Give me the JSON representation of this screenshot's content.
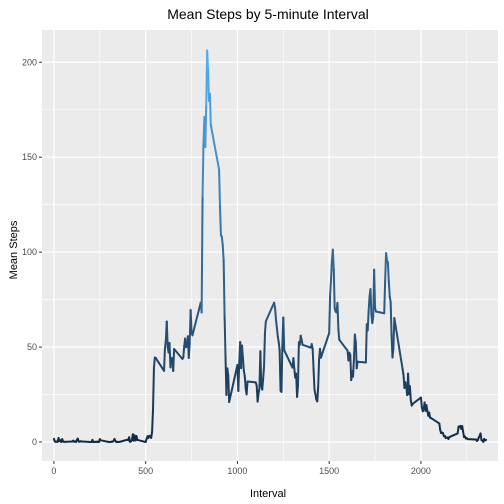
{
  "chart_data": {
    "type": "line",
    "title": "Mean Steps by 5-minute Interval",
    "xlabel": "Interval",
    "ylabel": "Mean Steps",
    "xlim": [
      -65,
      2420
    ],
    "ylim": [
      -10,
      217
    ],
    "xticks": [
      0,
      500,
      1000,
      1500,
      2000
    ],
    "yticks": [
      0,
      50,
      100,
      150,
      200
    ],
    "xminor": [
      250,
      750,
      1250,
      1750,
      2250
    ],
    "yminor": [
      25,
      75,
      125,
      175
    ],
    "grid": true,
    "background": "#EBEBEB",
    "gridColor": "#FFFFFF",
    "colorLow": "#132B43",
    "colorHigh": "#56B1F7",
    "legend": "none",
    "x": [
      0,
      5,
      10,
      15,
      20,
      25,
      30,
      35,
      40,
      45,
      50,
      55,
      100,
      105,
      110,
      115,
      120,
      125,
      130,
      135,
      140,
      145,
      150,
      155,
      200,
      205,
      210,
      215,
      220,
      225,
      230,
      235,
      240,
      245,
      250,
      255,
      300,
      305,
      310,
      315,
      320,
      325,
      330,
      335,
      340,
      345,
      350,
      355,
      400,
      405,
      410,
      415,
      420,
      425,
      430,
      435,
      440,
      445,
      450,
      455,
      500,
      505,
      510,
      515,
      520,
      525,
      530,
      535,
      540,
      545,
      550,
      555,
      600,
      605,
      610,
      615,
      620,
      625,
      630,
      635,
      640,
      645,
      650,
      655,
      700,
      705,
      710,
      715,
      720,
      725,
      730,
      735,
      740,
      745,
      750,
      755,
      800,
      805,
      810,
      815,
      820,
      825,
      830,
      835,
      840,
      845,
      850,
      855,
      900,
      905,
      910,
      915,
      920,
      925,
      930,
      935,
      940,
      945,
      950,
      955,
      1000,
      1005,
      1010,
      1015,
      1020,
      1025,
      1030,
      1035,
      1040,
      1045,
      1050,
      1055,
      1100,
      1105,
      1110,
      1115,
      1120,
      1125,
      1130,
      1135,
      1140,
      1145,
      1150,
      1155,
      1200,
      1205,
      1210,
      1215,
      1220,
      1225,
      1230,
      1235,
      1240,
      1245,
      1250,
      1255,
      1300,
      1305,
      1310,
      1315,
      1320,
      1325,
      1330,
      1335,
      1340,
      1345,
      1350,
      1355,
      1400,
      1405,
      1410,
      1415,
      1420,
      1425,
      1430,
      1435,
      1440,
      1445,
      1450,
      1455,
      1500,
      1505,
      1510,
      1515,
      1520,
      1525,
      1530,
      1535,
      1540,
      1545,
      1550,
      1555,
      1600,
      1605,
      1610,
      1615,
      1620,
      1625,
      1630,
      1635,
      1640,
      1645,
      1650,
      1655,
      1700,
      1705,
      1710,
      1715,
      1720,
      1725,
      1730,
      1735,
      1740,
      1745,
      1750,
      1755,
      1800,
      1805,
      1810,
      1815,
      1820,
      1825,
      1830,
      1835,
      1840,
      1845,
      1850,
      1855,
      1900,
      1905,
      1910,
      1915,
      1920,
      1925,
      1930,
      1935,
      1940,
      1945,
      1950,
      1955,
      2000,
      2005,
      2010,
      2015,
      2020,
      2025,
      2030,
      2035,
      2040,
      2045,
      2050,
      2055,
      2100,
      2105,
      2110,
      2115,
      2120,
      2125,
      2130,
      2135,
      2140,
      2145,
      2150,
      2155,
      2200,
      2205,
      2210,
      2215,
      2220,
      2225,
      2230,
      2235,
      2240,
      2245,
      2250,
      2255,
      2300,
      2305,
      2310,
      2315,
      2320,
      2325,
      2330,
      2335,
      2340,
      2345,
      2350,
      2355
    ],
    "y": [
      1.7,
      0.3,
      0.1,
      0.2,
      0.1,
      2.1,
      0.5,
      0.9,
      0,
      1.5,
      0.3,
      0.1,
      0.3,
      0.7,
      0.2,
      0.3,
      0,
      1.1,
      1.8,
      0.2,
      0.2,
      0.4,
      0.3,
      0.3,
      0,
      0,
      1.1,
      0,
      0,
      0.1,
      0,
      0.2,
      0,
      0,
      1.5,
      0.9,
      0,
      0,
      0,
      0.2,
      0.2,
      0.6,
      1.6,
      0.6,
      0,
      0.1,
      0,
      0,
      1.2,
      0.9,
      2.5,
      0.1,
      0.4,
      0.9,
      4.1,
      0.7,
      3.5,
      0.8,
      3.1,
      1.1,
      0,
      1.6,
      3,
      2.2,
      3.3,
      2.9,
      2.2,
      5.4,
      17.4,
      39,
      44.5,
      44.2,
      37.5,
      49.3,
      53.8,
      63.5,
      50,
      47.1,
      52.2,
      39.3,
      44,
      44.2,
      37.4,
      49,
      43.8,
      44.4,
      50.5,
      54.5,
      49.9,
      51,
      55.7,
      44.3,
      52.3,
      69.5,
      57.8,
      56.2,
      73.4,
      68.2,
      129.4,
      157.5,
      171.2,
      155.4,
      177.3,
      206.2,
      195.9,
      179.6,
      183.4,
      167,
      143.5,
      124,
      109.1,
      108.1,
      103.7,
      95.5,
      66.2,
      45.2,
      24.8,
      38.8,
      34.9,
      21.1,
      40.6,
      26.9,
      42.4,
      52.7,
      38.9,
      50.8,
      44.3,
      37.4,
      34.7,
      28.3,
      25.1,
      31.9,
      31.4,
      29.7,
      21.3,
      25.5,
      28.4,
      47.8,
      30.1,
      27.6,
      33.1,
      39.7,
      57.6,
      63.6,
      73.4,
      70.7,
      64.6,
      60.1,
      55.6,
      52.6,
      48.3,
      27,
      26.4,
      51.3,
      65.6,
      48.3,
      39.2,
      44.2,
      38.6,
      33.9,
      36,
      23.8,
      30,
      52.6,
      51.2,
      56,
      53.8,
      51.2,
      49.7,
      51.6,
      49,
      38.1,
      27.6,
      25.1,
      22.5,
      21.4,
      28.9,
      43.5,
      49.1,
      44.4,
      57.4,
      77.3,
      85.6,
      95.6,
      101.3,
      90.8,
      70.5,
      68.7,
      68.3,
      73.3,
      59.7,
      53.9,
      48.1,
      42.9,
      47,
      45.9,
      32.6,
      37.3,
      34.4,
      43.9,
      56.6,
      52.5,
      38.8,
      42.3,
      41.9,
      62,
      58.8,
      68.9,
      76.7,
      80.5,
      67.5,
      62.6,
      65.9,
      90.8,
      70.5,
      68.7,
      67.8,
      85.3,
      99.5,
      95.6,
      94.5,
      84.5,
      76.6,
      73.7,
      56.3,
      44.5,
      49.3,
      65.3,
      38.5,
      35.3,
      28.5,
      31.4,
      29.2,
      24.7,
      36,
      25.2,
      29.4,
      21.8,
      19.2,
      20.1,
      23.4,
      18.3,
      16.2,
      17.3,
      20.8,
      16.4,
      19.4,
      16.4,
      13.8,
      15.5,
      12.8,
      12.6,
      9.8,
      6.4,
      4.7,
      5,
      4.7,
      3.1,
      3.2,
      2.1,
      2.3,
      2.4,
      1.6,
      2.6,
      4.5,
      8.1,
      7.8,
      8.5,
      6.9,
      8.4,
      5.4,
      2.6,
      2.9,
      1.9,
      2,
      1.5,
      1.3,
      0.6,
      1,
      2.3,
      3.3,
      4.5,
      1,
      0.8,
      0.1,
      1.6,
      0.9,
      1.1
    ]
  }
}
